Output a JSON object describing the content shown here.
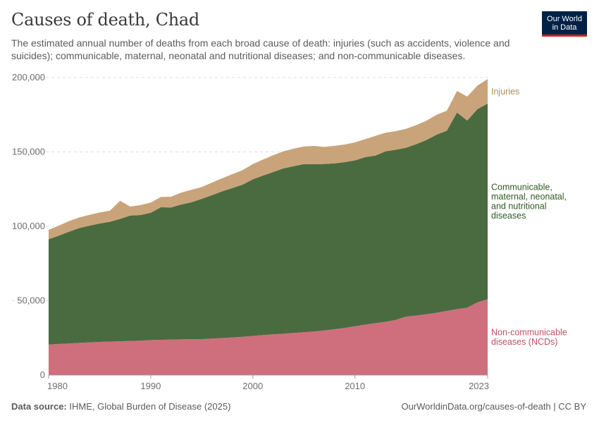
{
  "header": {
    "title": "Causes of death, Chad",
    "subtitle": "The estimated annual number of deaths from each broad cause of death: injuries (such as accidents, violence and suicides); communicable, maternal, neonatal and nutritional diseases; and non-communicable diseases."
  },
  "logo": {
    "line1": "Our World",
    "line2": "in Data",
    "bg_color": "#002147",
    "accent_color": "#ce261e"
  },
  "footer": {
    "source_label": "Data source:",
    "source_text": "IHME, Global Burden of Disease (2025)",
    "credit": "OurWorldinData.org/causes-of-death | CC BY"
  },
  "chart_data": {
    "type": "area",
    "stacked": true,
    "x": [
      1980,
      1981,
      1982,
      1983,
      1984,
      1985,
      1986,
      1987,
      1988,
      1989,
      1990,
      1991,
      1992,
      1993,
      1994,
      1995,
      1996,
      1997,
      1998,
      1999,
      2000,
      2001,
      2002,
      2003,
      2004,
      2005,
      2006,
      2007,
      2008,
      2009,
      2010,
      2011,
      2012,
      2013,
      2014,
      2015,
      2016,
      2017,
      2018,
      2019,
      2020,
      2021,
      2022,
      2023
    ],
    "x_ticks": [
      "1980",
      "1990",
      "2000",
      "2010",
      "2023"
    ],
    "x_tick_values": [
      1980,
      1990,
      2000,
      2010,
      2023
    ],
    "y_ticks": [
      "0",
      "50,000",
      "100,000",
      "150,000",
      "200,000"
    ],
    "y_tick_values": [
      0,
      50000,
      100000,
      150000,
      200000
    ],
    "ylim": [
      0,
      200000
    ],
    "grid": "horizontal dashed",
    "legend": "right, inline labels",
    "series": [
      {
        "name": "Non-communicable diseases (NCDs)",
        "label_lines": [
          "Non-communicable",
          "diseases (NCDs)"
        ],
        "color": "#cf6f7d",
        "label_color": "#c44e62",
        "values": [
          20500,
          20900,
          21200,
          21600,
          22000,
          22300,
          22500,
          22700,
          22900,
          23100,
          23500,
          23700,
          23800,
          24000,
          24100,
          24200,
          24500,
          24900,
          25300,
          25700,
          26300,
          26900,
          27400,
          27800,
          28300,
          28800,
          29300,
          30000,
          30800,
          31700,
          32800,
          33900,
          34900,
          35800,
          37100,
          39300,
          40000,
          40900,
          41900,
          43100,
          44300,
          45300,
          48900,
          51000
        ]
      },
      {
        "name": "Communicable, maternal, neonatal, and nutritional diseases",
        "label_lines": [
          "Communicable,",
          "maternal, neonatal,",
          "and nutritional",
          "diseases"
        ],
        "color": "#4a6b3f",
        "label_color": "#2f5a22",
        "values": [
          70800,
          72800,
          75200,
          77200,
          78400,
          79600,
          80500,
          82300,
          84300,
          84500,
          85600,
          89100,
          88900,
          90700,
          92100,
          94300,
          96400,
          98600,
          100400,
          102300,
          105300,
          107200,
          109100,
          111100,
          112100,
          113000,
          112500,
          111900,
          111500,
          111400,
          111500,
          112600,
          112600,
          114600,
          114400,
          113500,
          115200,
          117100,
          119700,
          121200,
          132200,
          125800,
          129900,
          131500
        ]
      },
      {
        "name": "Injuries",
        "label_lines": [
          "Injuries"
        ],
        "color": "#c9a47a",
        "label_color": "#b58a55",
        "values": [
          6300,
          6800,
          7100,
          7200,
          7300,
          7400,
          7500,
          12200,
          6100,
          6700,
          6900,
          6900,
          7200,
          8000,
          8400,
          7900,
          8500,
          8800,
          9400,
          9800,
          10200,
          10800,
          11300,
          11500,
          11800,
          11900,
          12200,
          11500,
          11800,
          11900,
          12100,
          12100,
          13300,
          12500,
          12500,
          12700,
          12800,
          13000,
          13400,
          13400,
          14500,
          16100,
          15800,
          16500
        ]
      }
    ]
  }
}
